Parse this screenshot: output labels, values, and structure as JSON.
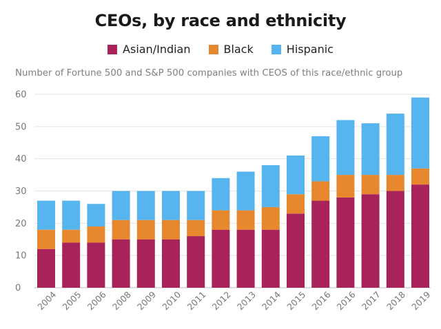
{
  "chart_data": {
    "type": "bar",
    "stacked": true,
    "title": "CEOs, by race and ethnicity",
    "subtitle": "Number of Fortune 500 and S&P 500 companies with CEOS of this race/ethnic group",
    "categories": [
      "2004",
      "2005",
      "2006",
      "2008",
      "2009",
      "2010",
      "2011",
      "2012",
      "2013",
      "2014",
      "2015",
      "2016",
      "2016",
      "2017",
      "2018",
      "2019"
    ],
    "series": [
      {
        "name": "Asian/Indian",
        "color": "#a8235a",
        "values": [
          12,
          14,
          14,
          15,
          15,
          15,
          16,
          18,
          18,
          18,
          23,
          27,
          28,
          29,
          30,
          32
        ]
      },
      {
        "name": "Black",
        "color": "#e8882e",
        "values": [
          6,
          4,
          5,
          6,
          6,
          6,
          5,
          6,
          6,
          7,
          6,
          6,
          7,
          6,
          5,
          5
        ]
      },
      {
        "name": "Hispanic",
        "color": "#56b4ee",
        "values": [
          9,
          9,
          7,
          9,
          9,
          9,
          9,
          10,
          12,
          13,
          12,
          14,
          17,
          16,
          19,
          22
        ]
      }
    ],
    "yticks": [
      0,
      10,
      20,
      30,
      40,
      50,
      60
    ],
    "ylim": [
      0,
      60
    ],
    "grid": true,
    "legend": "top-center"
  }
}
